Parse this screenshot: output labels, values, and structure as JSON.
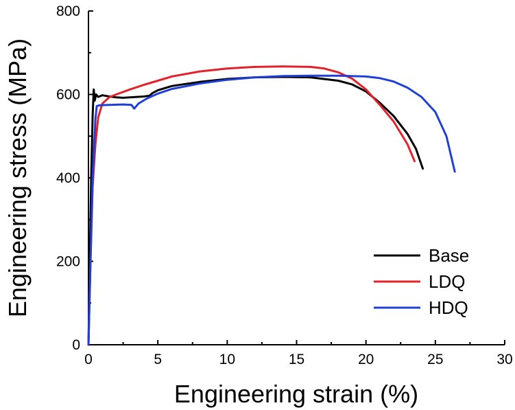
{
  "chart_data": {
    "type": "line",
    "title": "",
    "xlabel": "Engineering strain (%)",
    "ylabel": "Engineering stress (MPa)",
    "xlim": [
      0,
      30
    ],
    "ylim": [
      0,
      800
    ],
    "xticks": [
      0,
      5,
      10,
      15,
      20,
      25,
      30
    ],
    "yticks": [
      0,
      200,
      400,
      600,
      800
    ],
    "grid": false,
    "legend_position": "bottom-right",
    "series": [
      {
        "name": "Base",
        "color": "#000000",
        "points": [
          [
            0,
            0
          ],
          [
            0.1,
            200
          ],
          [
            0.2,
            400
          ],
          [
            0.3,
            550
          ],
          [
            0.38,
            612
          ],
          [
            0.45,
            585
          ],
          [
            0.55,
            600
          ],
          [
            0.7,
            594
          ],
          [
            1.0,
            598
          ],
          [
            1.5,
            595
          ],
          [
            2.0,
            593
          ],
          [
            2.5,
            592
          ],
          [
            3.0,
            593
          ],
          [
            3.5,
            594
          ],
          [
            4.0,
            595
          ],
          [
            4.4,
            597
          ],
          [
            4.6,
            603
          ],
          [
            5,
            610
          ],
          [
            6,
            620
          ],
          [
            8,
            630
          ],
          [
            10,
            637
          ],
          [
            12,
            641
          ],
          [
            14,
            642
          ],
          [
            16,
            641
          ],
          [
            18,
            633
          ],
          [
            19,
            624
          ],
          [
            20,
            607
          ],
          [
            21,
            580
          ],
          [
            22,
            548
          ],
          [
            23,
            505
          ],
          [
            23.6,
            470
          ],
          [
            24.1,
            422
          ]
        ]
      },
      {
        "name": "LDQ",
        "color": "#e4202a",
        "points": [
          [
            0,
            0
          ],
          [
            0.15,
            200
          ],
          [
            0.3,
            380
          ],
          [
            0.5,
            480
          ],
          [
            0.7,
            545
          ],
          [
            1.0,
            578
          ],
          [
            1.5,
            593
          ],
          [
            2.0,
            600
          ],
          [
            3,
            612
          ],
          [
            4,
            623
          ],
          [
            5,
            633
          ],
          [
            6,
            643
          ],
          [
            8,
            655
          ],
          [
            10,
            662
          ],
          [
            12,
            666
          ],
          [
            14,
            667
          ],
          [
            16,
            666
          ],
          [
            17,
            662
          ],
          [
            18,
            653
          ],
          [
            19,
            638
          ],
          [
            20,
            612
          ],
          [
            21,
            575
          ],
          [
            22,
            535
          ],
          [
            23,
            480
          ],
          [
            23.5,
            440
          ]
        ]
      },
      {
        "name": "HDQ",
        "color": "#1f3fd6",
        "points": [
          [
            0,
            0
          ],
          [
            0.15,
            200
          ],
          [
            0.3,
            400
          ],
          [
            0.5,
            540
          ],
          [
            0.6,
            572
          ],
          [
            0.8,
            574
          ],
          [
            1.5,
            575
          ],
          [
            2.5,
            576
          ],
          [
            3.1,
            575
          ],
          [
            3.3,
            566
          ],
          [
            3.6,
            578
          ],
          [
            4.2,
            590
          ],
          [
            5,
            602
          ],
          [
            6,
            613
          ],
          [
            8,
            626
          ],
          [
            10,
            635
          ],
          [
            12,
            641
          ],
          [
            14,
            644
          ],
          [
            16,
            645
          ],
          [
            18,
            645
          ],
          [
            20,
            643
          ],
          [
            21,
            639
          ],
          [
            22,
            631
          ],
          [
            23,
            616
          ],
          [
            24,
            594
          ],
          [
            25,
            558
          ],
          [
            25.8,
            500
          ],
          [
            26.4,
            415
          ]
        ]
      }
    ]
  }
}
